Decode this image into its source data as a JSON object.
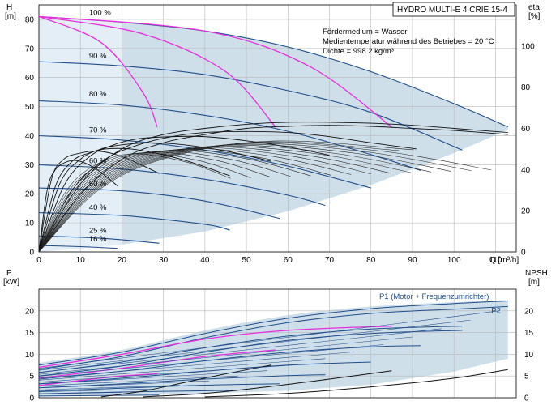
{
  "chart_data": [
    {
      "type": "line",
      "title": "HYDRO MULTI-E 4 CRIE 15-4",
      "xlabel": "Q [m³/h]",
      "ylabel_left": "H\n[m]",
      "ylabel_right": "eta\n[%]",
      "xlim": [
        0,
        115
      ],
      "ylim": [
        0,
        85
      ],
      "eta_lim": [
        0,
        120
      ],
      "x_ticks": [
        0,
        10,
        20,
        30,
        40,
        50,
        60,
        70,
        80,
        90,
        100,
        110
      ],
      "y_ticks": [
        0,
        10,
        20,
        30,
        40,
        50,
        60,
        70,
        80
      ],
      "eta_ticks": [
        0,
        20,
        40,
        60,
        80,
        100
      ],
      "grid": true,
      "notes": [
        "Fördermedium = Wasser",
        "Medientemperatur während des Betriebes = 20 °C",
        "Dichte = 998.2 kg/m³"
      ],
      "speed_labels": [
        {
          "text": "100 %",
          "x": 7,
          "y": 81
        },
        {
          "text": "90 %",
          "x": 7,
          "y": 66
        },
        {
          "text": "80 %",
          "x": 7,
          "y": 53
        },
        {
          "text": "70 %",
          "x": 7,
          "y": 40.5
        },
        {
          "text": "60 %",
          "x": 7,
          "y": 30
        },
        {
          "text": "50 %",
          "x": 7,
          "y": 22
        },
        {
          "text": "40 %",
          "x": 7,
          "y": 14
        },
        {
          "text": "25 %",
          "x": 7,
          "y": 6
        },
        {
          "text": "16 %",
          "x": 7,
          "y": 3
        }
      ],
      "operating_area": {
        "upper_x": [
          0,
          20,
          40,
          60,
          80,
          100,
          113
        ],
        "upper_y": [
          81,
          79,
          76,
          70.5,
          62,
          51,
          43
        ],
        "lower_x": [
          0,
          10,
          20,
          40,
          60,
          80,
          100,
          113
        ],
        "lower_y": [
          0,
          1.2,
          2.5,
          7,
          14,
          23,
          34,
          42
        ]
      },
      "series": [
        {
          "curve": "pump-100",
          "x": [
            0,
            20,
            40,
            60,
            80,
            100,
            113
          ],
          "y": [
            81,
            79,
            76,
            70.5,
            62,
            51,
            43
          ]
        },
        {
          "curve": "pump-90",
          "x": [
            0,
            20,
            40,
            60,
            80,
            102
          ],
          "y": [
            65.5,
            64,
            61,
            55.5,
            48,
            35
          ]
        },
        {
          "curve": "pump-80",
          "x": [
            0,
            20,
            40,
            60,
            80,
            92
          ],
          "y": [
            52,
            50.5,
            47,
            41.5,
            33.5,
            28
          ]
        },
        {
          "curve": "pump-70",
          "x": [
            0,
            20,
            40,
            60,
            80
          ],
          "y": [
            40,
            38.5,
            35,
            29.5,
            22
          ]
        },
        {
          "curve": "pump-60",
          "x": [
            0,
            20,
            40,
            60,
            69
          ],
          "y": [
            30,
            28.5,
            25,
            19.5,
            16
          ]
        },
        {
          "curve": "pump-50",
          "x": [
            0,
            20,
            40,
            58
          ],
          "y": [
            22,
            21,
            17.5,
            11.5
          ]
        },
        {
          "curve": "pump-40",
          "x": [
            0,
            20,
            40,
            46
          ],
          "y": [
            13.5,
            12.5,
            9.5,
            7.5
          ]
        },
        {
          "curve": "pump-25",
          "x": [
            0,
            15,
            29
          ],
          "y": [
            5.5,
            4.7,
            3
          ]
        },
        {
          "curve": "pump-16",
          "x": [
            0,
            10,
            19
          ],
          "y": [
            2.2,
            1.8,
            1.2
          ]
        },
        {
          "curve": "magenta-1",
          "x": [
            0,
            15,
            25,
            28.5
          ],
          "y": [
            81,
            72,
            55,
            43
          ]
        },
        {
          "curve": "magenta-2",
          "x": [
            0,
            25,
            45,
            57
          ],
          "y": [
            81,
            75,
            62,
            43
          ]
        },
        {
          "curve": "magenta-3",
          "x": [
            0,
            40,
            65,
            85
          ],
          "y": [
            81,
            76,
            64,
            43
          ]
        },
        {
          "curve": "eta-main",
          "x": [
            0,
            10,
            20,
            30,
            40,
            50,
            60,
            70,
            80,
            90,
            100,
            113
          ],
          "y_eta": [
            0,
            28,
            45,
            53,
            57,
            60,
            61,
            61.5,
            61,
            60,
            59,
            57
          ]
        },
        {
          "curve": "eta-2",
          "x": [
            0,
            10,
            20,
            30,
            40,
            50,
            60,
            70,
            80,
            90,
            100,
            113
          ],
          "y_eta": [
            0,
            33,
            50,
            57,
            60,
            62,
            63,
            63,
            62.5,
            61.5,
            60,
            58
          ]
        },
        {
          "curve": "eta-3",
          "x": [
            0,
            8,
            16,
            24,
            32,
            40,
            50,
            60,
            70,
            80,
            91
          ],
          "y_eta": [
            0,
            30,
            45,
            52,
            56,
            58,
            58.5,
            58,
            56,
            53,
            50
          ]
        },
        {
          "curve": "eta-4",
          "x": [
            0,
            6,
            12,
            18,
            24,
            32,
            40,
            50,
            60,
            70
          ],
          "y_eta": [
            0,
            32,
            46,
            52,
            55,
            56,
            56,
            54,
            51,
            47
          ]
        },
        {
          "curve": "eta-5",
          "x": [
            0,
            5,
            10,
            15,
            20,
            27,
            35,
            45,
            56
          ],
          "y_eta": [
            0,
            33,
            45,
            50,
            52,
            53,
            52,
            49,
            44
          ]
        },
        {
          "curve": "eta-6",
          "x": [
            0,
            4,
            8,
            12,
            16,
            22,
            28,
            36,
            46
          ],
          "y_eta": [
            0,
            32,
            44,
            48,
            50,
            50,
            48,
            44,
            37
          ]
        },
        {
          "curve": "eta-7",
          "x": [
            0,
            3,
            6,
            10,
            14,
            19,
            25,
            29
          ],
          "y_eta": [
            0,
            35,
            45,
            48,
            49,
            47,
            42,
            38
          ]
        },
        {
          "curve": "eta-8",
          "x": [
            0,
            2,
            4,
            7,
            10,
            14,
            19
          ],
          "y_eta": [
            0,
            30,
            40,
            44,
            44,
            40,
            32
          ]
        }
      ]
    },
    {
      "type": "line",
      "xlabel": "",
      "ylabel_left": "P\n[kW]",
      "ylabel_right": "NPSH\n[m]",
      "xlim": [
        0,
        115
      ],
      "ylim": [
        0,
        25
      ],
      "y_ticks": [
        0,
        5,
        10,
        15,
        20
      ],
      "grid": true,
      "labels": [
        {
          "text": "P1 (Motor + Frequenzumrichter)",
          "x": 82,
          "y": 22.8
        },
        {
          "text": "P2",
          "x": 109,
          "y": 19.5
        }
      ],
      "operating_area": {
        "upper_x": [
          0,
          20,
          40,
          60,
          80,
          100,
          113
        ],
        "upper_y": [
          8,
          11,
          15.5,
          19,
          21,
          22,
          22.5
        ],
        "lower_x": [
          0,
          20,
          40,
          60,
          80,
          100,
          113
        ],
        "lower_y": [
          0.3,
          0.5,
          1,
          1.6,
          3,
          6,
          9
        ]
      },
      "series": [
        {
          "curve": "P1-100",
          "x": [
            0,
            20,
            40,
            60,
            80,
            100,
            113
          ],
          "y": [
            7.5,
            10.5,
            14.8,
            18.3,
            20.5,
            21.7,
            22.3
          ]
        },
        {
          "curve": "P2-100",
          "x": [
            0,
            20,
            40,
            60,
            80,
            100,
            113
          ],
          "y": [
            6.5,
            9.5,
            13.8,
            17.3,
            19.4,
            20.4,
            21
          ]
        },
        {
          "curve": "P1-90",
          "x": [
            0,
            20,
            40,
            60,
            80,
            102
          ],
          "y": [
            5.8,
            8.2,
            11.5,
            14.2,
            15.8,
            16.5
          ]
        },
        {
          "curve": "P2-90",
          "x": [
            0,
            20,
            40,
            60,
            80,
            102
          ],
          "y": [
            5,
            7.3,
            10.5,
            13.2,
            14.8,
            15.5
          ]
        },
        {
          "curve": "P1-80",
          "x": [
            0,
            20,
            40,
            60,
            80,
            92
          ],
          "y": [
            4.3,
            6.1,
            8.5,
            10.5,
            11.7,
            12
          ]
        },
        {
          "curve": "P1-70",
          "x": [
            0,
            20,
            40,
            60,
            80
          ],
          "y": [
            3.2,
            4.5,
            6.1,
            7.5,
            8.2
          ]
        },
        {
          "curve": "P1-60",
          "x": [
            0,
            20,
            40,
            60,
            69
          ],
          "y": [
            2.3,
            3.2,
            4.3,
            5.1,
            5.3
          ]
        },
        {
          "curve": "P1-50",
          "x": [
            0,
            20,
            40,
            58
          ],
          "y": [
            1.5,
            2.2,
            2.9,
            3.2
          ]
        },
        {
          "curve": "P1-40",
          "x": [
            0,
            20,
            40,
            46
          ],
          "y": [
            0.9,
            1.3,
            1.6,
            1.7
          ]
        },
        {
          "curve": "P1-25",
          "x": [
            0,
            15,
            29
          ],
          "y": [
            0.4,
            0.5,
            0.6
          ]
        },
        {
          "curve": "magenta-P-1",
          "x": [
            0,
            20,
            40,
            60,
            85
          ],
          "y": [
            7,
            10,
            13.5,
            15.5,
            16.5
          ]
        },
        {
          "curve": "magenta-P-2",
          "x": [
            0,
            20,
            40,
            57
          ],
          "y": [
            4.5,
            6.8,
            9.5,
            11
          ]
        },
        {
          "curve": "magenta-P-3",
          "x": [
            0,
            10,
            20,
            28.5
          ],
          "y": [
            2.8,
            4,
            5,
            5.5
          ]
        },
        {
          "curve": "npsh-1",
          "x": [
            40,
            60,
            80,
            100,
            113
          ],
          "y": [
            0.2,
            1,
            2.5,
            4.5,
            6.5
          ]
        },
        {
          "curve": "npsh-2",
          "x": [
            25,
            40,
            55,
            70,
            85
          ],
          "y": [
            0.2,
            1,
            2.5,
            4.3,
            6.2
          ]
        },
        {
          "curve": "npsh-3",
          "x": [
            15,
            25,
            35,
            45,
            56
          ],
          "y": [
            0.2,
            1.5,
            3.5,
            5.5,
            7.5
          ]
        }
      ]
    }
  ]
}
